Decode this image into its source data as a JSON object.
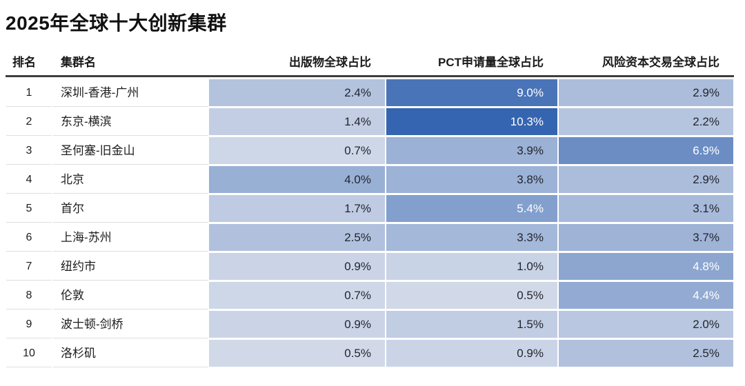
{
  "chart_data": {
    "type": "table",
    "title": "2025年全球十大创新集群",
    "columns": [
      {
        "key": "rank",
        "label": "排名",
        "heat": false
      },
      {
        "key": "name",
        "label": "集群名",
        "heat": false
      },
      {
        "key": "pub",
        "label": "出版物全球占比",
        "heat": true
      },
      {
        "key": "pct",
        "label": "PCT申请量全球占比",
        "heat": true
      },
      {
        "key": "vc",
        "label": "风险资本交易全球占比",
        "heat": true
      }
    ],
    "rows": [
      {
        "rank": "1",
        "name": "深圳-香港-广州",
        "pub": "2.4%",
        "pct": "9.0%",
        "vc": "2.9%"
      },
      {
        "rank": "2",
        "name": "东京-横滨",
        "pub": "1.4%",
        "pct": "10.3%",
        "vc": "2.2%"
      },
      {
        "rank": "3",
        "name": "圣何塞-旧金山",
        "pub": "0.7%",
        "pct": "3.9%",
        "vc": "6.9%"
      },
      {
        "rank": "4",
        "name": "北京",
        "pub": "4.0%",
        "pct": "3.8%",
        "vc": "2.9%"
      },
      {
        "rank": "5",
        "name": "首尔",
        "pub": "1.7%",
        "pct": "5.4%",
        "vc": "3.1%"
      },
      {
        "rank": "6",
        "name": "上海-苏州",
        "pub": "2.5%",
        "pct": "3.3%",
        "vc": "3.7%"
      },
      {
        "rank": "7",
        "name": "纽约市",
        "pub": "0.9%",
        "pct": "1.0%",
        "vc": "4.8%"
      },
      {
        "rank": "8",
        "name": "伦敦",
        "pub": "0.7%",
        "pct": "0.5%",
        "vc": "4.4%"
      },
      {
        "rank": "9",
        "name": "波士顿-剑桥",
        "pub": "0.9%",
        "pct": "1.5%",
        "vc": "2.0%"
      },
      {
        "rank": "10",
        "name": "洛杉矶",
        "pub": "0.5%",
        "pct": "0.9%",
        "vc": "2.5%"
      }
    ],
    "heatmap": {
      "min_value": 0.5,
      "max_value": 10.3,
      "min_color": "#d1d9e9",
      "max_color": "#3565b0",
      "white_text_threshold": 4.2,
      "dark_text_color": "#23252e",
      "light_text_color": "#ffffff"
    }
  }
}
